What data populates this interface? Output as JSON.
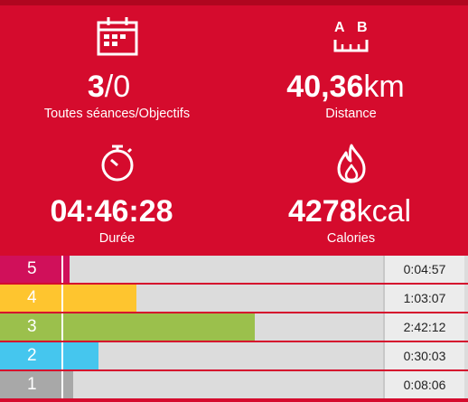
{
  "stats": {
    "sessions": {
      "icon": "calendar-icon",
      "value_bold": "3",
      "value_rest": "/0",
      "label": "Toutes séances/Objectifs"
    },
    "distance": {
      "icon": "distance-ab-icon",
      "value_bold": "40,36",
      "value_rest": "km",
      "label": "Distance"
    },
    "duration": {
      "icon": "stopwatch-icon",
      "value_bold": "04:46:28",
      "value_rest": "",
      "label": "Durée"
    },
    "calories": {
      "icon": "flame-icon",
      "value_bold": "4278",
      "value_rest": "kcal",
      "label": "Calories"
    }
  },
  "zones": [
    {
      "number": "5",
      "time": "0:04:57",
      "color": "#d0105a",
      "fill": 0.02
    },
    {
      "number": "4",
      "time": "1:03:07",
      "color": "#fec52f",
      "fill": 0.23
    },
    {
      "number": "3",
      "time": "2:42:12",
      "color": "#9bc04c",
      "fill": 0.6
    },
    {
      "number": "2",
      "time": "0:30:03",
      "color": "#45c6ee",
      "fill": 0.11
    },
    {
      "number": "1",
      "time": "0:08:06",
      "color": "#a8a8a8",
      "fill": 0.03
    }
  ],
  "colors": {
    "background": "#d50b2d",
    "track": "#dcdcdc"
  }
}
